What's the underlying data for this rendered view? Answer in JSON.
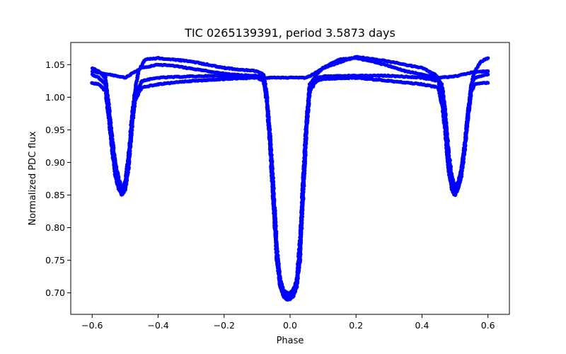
{
  "chart_data": {
    "type": "scatter",
    "title": "TIC 0265139391, period 3.5873 days",
    "xlabel": "Phase",
    "ylabel": "Normalized PDC flux",
    "xlim": [
      -0.665,
      0.665
    ],
    "ylim": [
      0.667,
      1.084
    ],
    "xticks": [
      -0.6,
      -0.4,
      -0.2,
      0.0,
      0.2,
      0.4,
      0.6
    ],
    "xtick_labels": [
      "−0.6",
      "−0.4",
      "−0.2",
      "0.0",
      "0.2",
      "0.4",
      "0.6"
    ],
    "yticks": [
      0.7,
      0.75,
      0.8,
      0.85,
      0.9,
      0.95,
      1.0,
      1.05
    ],
    "ytick_labels": [
      "0.70",
      "0.75",
      "0.80",
      "0.85",
      "0.90",
      "0.95",
      "1.00",
      "1.05"
    ],
    "grid": false,
    "marker_color": "#0000ff",
    "series": [
      {
        "x": [
          -0.6,
          -0.58,
          -0.56,
          -0.55,
          -0.54,
          -0.53,
          -0.52,
          -0.51,
          -0.5,
          -0.49,
          -0.48,
          -0.47,
          -0.45,
          -0.4,
          -0.3,
          -0.2,
          -0.1,
          -0.08,
          -0.07,
          -0.06,
          -0.05,
          -0.04,
          -0.03,
          -0.02,
          -0.01,
          0.0,
          0.01,
          0.02,
          0.03,
          0.04,
          0.05,
          0.06,
          0.08,
          0.1,
          0.2,
          0.3,
          0.4,
          0.45,
          0.46,
          0.47,
          0.48,
          0.49,
          0.5,
          0.51,
          0.52,
          0.53,
          0.54,
          0.55,
          0.56,
          0.58,
          0.6
        ],
        "y": [
          1.035,
          1.03,
          1.02,
          0.98,
          0.93,
          0.89,
          0.865,
          0.855,
          0.865,
          0.9,
          0.96,
          1.0,
          1.025,
          1.03,
          1.032,
          1.033,
          1.033,
          1.03,
          1.0,
          0.94,
          0.86,
          0.77,
          0.72,
          0.705,
          0.7,
          0.7,
          0.705,
          0.72,
          0.78,
          0.88,
          0.97,
          1.02,
          1.03,
          1.032,
          1.033,
          1.033,
          1.03,
          1.025,
          1.0,
          0.96,
          0.9,
          0.865,
          0.855,
          0.865,
          0.89,
          0.93,
          0.98,
          1.02,
          1.03,
          1.033,
          1.035
        ]
      },
      {
        "x": [
          -0.6,
          -0.58,
          -0.56,
          -0.55,
          -0.54,
          -0.53,
          -0.52,
          -0.51,
          -0.5,
          -0.49,
          -0.48,
          -0.47,
          -0.46,
          -0.44,
          -0.4,
          -0.3,
          -0.2,
          -0.1,
          -0.08,
          -0.07,
          -0.06,
          -0.05,
          -0.04,
          -0.03,
          -0.02,
          -0.01,
          0.0,
          0.01,
          0.02,
          0.03,
          0.04,
          0.05,
          0.06,
          0.08,
          0.1,
          0.2,
          0.3,
          0.4,
          0.44,
          0.46,
          0.47,
          0.48,
          0.49,
          0.5,
          0.51,
          0.52,
          0.53,
          0.54,
          0.55,
          0.56,
          0.58,
          0.6
        ],
        "y": [
          1.045,
          1.04,
          1.03,
          0.99,
          0.94,
          0.9,
          0.875,
          0.862,
          0.87,
          0.91,
          0.97,
          1.01,
          1.04,
          1.058,
          1.06,
          1.055,
          1.045,
          1.04,
          1.035,
          1.0,
          0.93,
          0.84,
          0.76,
          0.71,
          0.695,
          0.69,
          0.69,
          0.695,
          0.71,
          0.76,
          0.86,
          0.96,
          1.02,
          1.035,
          1.045,
          1.062,
          1.055,
          1.045,
          1.035,
          1.02,
          0.98,
          0.92,
          0.88,
          0.862,
          0.87,
          0.89,
          0.93,
          0.98,
          1.02,
          1.04,
          1.055,
          1.06
        ]
      },
      {
        "x": [
          -0.6,
          -0.58,
          -0.56,
          -0.55,
          -0.54,
          -0.53,
          -0.52,
          -0.51,
          -0.5,
          -0.49,
          -0.48,
          -0.47,
          -0.45,
          -0.4,
          -0.3,
          -0.2,
          -0.1,
          -0.08,
          -0.07,
          -0.06,
          -0.05,
          -0.04,
          -0.03,
          -0.02,
          -0.01,
          0.0,
          0.01,
          0.02,
          0.03,
          0.04,
          0.05,
          0.06,
          0.08,
          0.1,
          0.2,
          0.3,
          0.4,
          0.45,
          0.46,
          0.47,
          0.48,
          0.49,
          0.5,
          0.51,
          0.52,
          0.53,
          0.54,
          0.55,
          0.56,
          0.58,
          0.6
        ],
        "y": [
          1.022,
          1.02,
          1.01,
          0.97,
          0.92,
          0.88,
          0.86,
          0.85,
          0.858,
          0.89,
          0.95,
          0.995,
          1.015,
          1.02,
          1.025,
          1.028,
          1.03,
          1.025,
          0.99,
          0.92,
          0.83,
          0.75,
          0.71,
          0.698,
          0.695,
          0.695,
          0.698,
          0.71,
          0.75,
          0.85,
          0.95,
          1.01,
          1.025,
          1.028,
          1.03,
          1.025,
          1.02,
          1.015,
          0.99,
          0.95,
          0.89,
          0.858,
          0.85,
          0.86,
          0.88,
          0.92,
          0.97,
          1.01,
          1.02,
          1.022,
          1.022
        ]
      },
      {
        "x": [
          -0.6,
          -0.55,
          -0.5,
          -0.45,
          -0.4,
          -0.35,
          -0.3,
          -0.25,
          -0.2,
          -0.15,
          -0.1,
          -0.08,
          0.05,
          0.08,
          0.1,
          0.15,
          0.2,
          0.25,
          0.3,
          0.35,
          0.4,
          0.45,
          0.5,
          0.55,
          0.6
        ],
        "y": [
          1.04,
          1.035,
          1.03,
          1.045,
          1.05,
          1.048,
          1.044,
          1.04,
          1.036,
          1.034,
          1.032,
          1.03,
          1.03,
          1.038,
          1.045,
          1.058,
          1.06,
          1.055,
          1.048,
          1.04,
          1.035,
          1.03,
          1.032,
          1.038,
          1.04
        ]
      }
    ]
  }
}
